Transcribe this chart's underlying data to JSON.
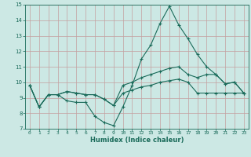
{
  "xlabel": "Humidex (Indice chaleur)",
  "x": [
    0,
    1,
    2,
    3,
    4,
    5,
    6,
    7,
    8,
    9,
    10,
    11,
    12,
    13,
    14,
    15,
    16,
    17,
    18,
    19,
    20,
    21,
    22,
    23
  ],
  "line1": [
    9.8,
    8.4,
    9.2,
    9.2,
    8.8,
    8.7,
    8.7,
    7.8,
    7.4,
    7.2,
    8.4,
    9.8,
    11.5,
    12.4,
    13.8,
    14.9,
    13.7,
    12.8,
    11.8,
    11.0,
    10.5,
    9.9,
    10.0,
    9.3
  ],
  "line2": [
    9.8,
    8.4,
    9.2,
    9.2,
    9.4,
    9.3,
    9.2,
    9.2,
    8.9,
    8.5,
    9.8,
    10.0,
    10.3,
    10.5,
    10.7,
    10.9,
    11.0,
    10.5,
    10.3,
    10.5,
    10.5,
    9.9,
    10.0,
    9.3
  ],
  "line3": [
    9.8,
    8.4,
    9.2,
    9.2,
    9.4,
    9.3,
    9.2,
    9.2,
    8.9,
    8.5,
    9.3,
    9.5,
    9.7,
    9.8,
    10.0,
    10.1,
    10.2,
    10.0,
    9.3,
    9.3,
    9.3,
    9.3,
    9.3,
    9.3
  ],
  "line_color": "#1a6b5a",
  "bg_color": "#cce8e4",
  "grid_color": "#c4a0a0",
  "ylim": [
    7,
    15
  ],
  "xlim": [
    -0.5,
    23.5
  ],
  "yticks": [
    7,
    8,
    9,
    10,
    11,
    12,
    13,
    14,
    15
  ],
  "xticks": [
    0,
    1,
    2,
    3,
    4,
    5,
    6,
    7,
    8,
    9,
    10,
    11,
    12,
    13,
    14,
    15,
    16,
    17,
    18,
    19,
    20,
    21,
    22,
    23
  ]
}
